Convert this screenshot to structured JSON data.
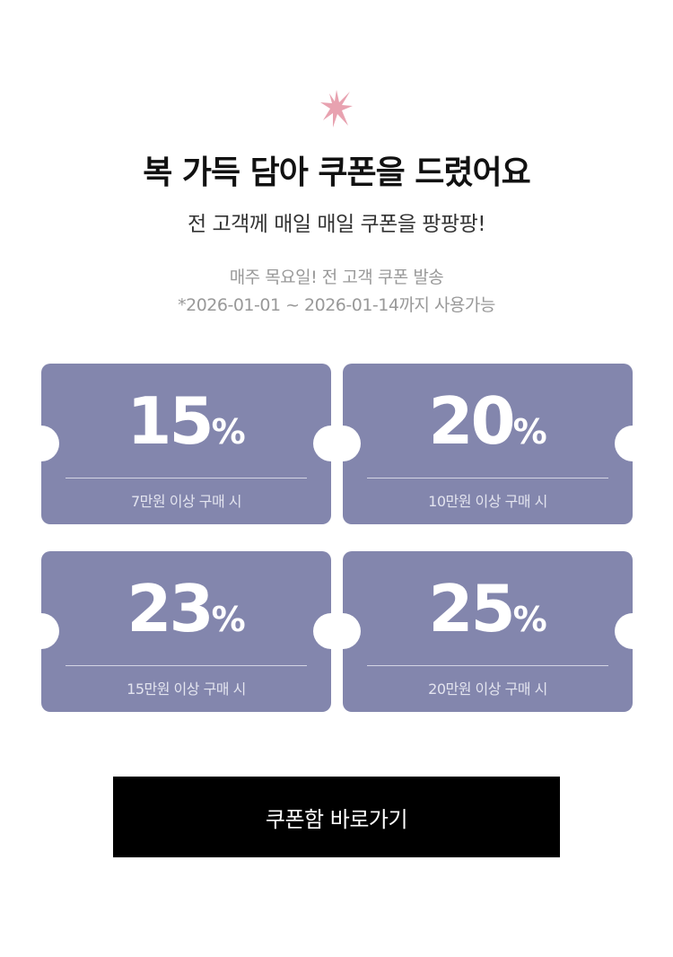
{
  "header": {
    "icon": "sparkle-icon",
    "title": "복 가득 담아 쿠폰을 드렸어요",
    "subtitle": "전 고객께 매일 매일 쿠폰을 팡팡팡!",
    "info_line1": "매주 목요일! 전 고객 쿠폰 발송",
    "info_line2": "*2026-01-01 ~ 2026-01-14까지 사용가능"
  },
  "colors": {
    "coupon": "#8386ad",
    "accent_icon": "#e8a2b0",
    "button": "#000000"
  },
  "coupons": [
    {
      "value": "15",
      "unit": "%",
      "condition": "7만원 이상 구매 시"
    },
    {
      "value": "20",
      "unit": "%",
      "condition": "10만원 이상 구매 시"
    },
    {
      "value": "23",
      "unit": "%",
      "condition": "15만원 이상 구매 시"
    },
    {
      "value": "25",
      "unit": "%",
      "condition": "20만원 이상 구매 시"
    }
  ],
  "cta": {
    "label": "쿠폰함 바로가기"
  }
}
